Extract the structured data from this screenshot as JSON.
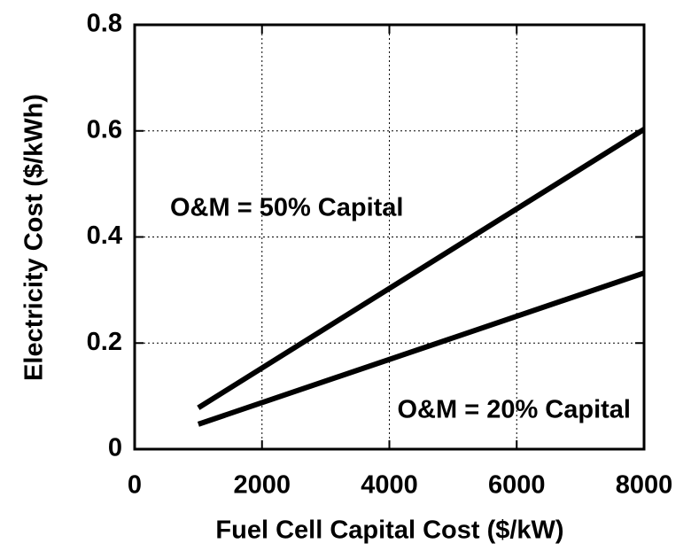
{
  "chart_data": {
    "type": "line",
    "x_label": "Fuel Cell Capital Cost ($/kW)",
    "y_label": "Electricity Cost ($/kWh)",
    "x": [
      1000,
      8000
    ],
    "series": [
      {
        "name": "O&M = 50% Capital",
        "color": "#000000",
        "values": [
          0.078,
          0.603
        ]
      },
      {
        "name": "O&M = 20% Capital",
        "color": "#000000",
        "values": [
          0.047,
          0.332
        ]
      }
    ],
    "xlim": [
      0,
      8000
    ],
    "xticks": [
      0,
      2000,
      4000,
      6000,
      8000
    ],
    "ylim": [
      0,
      0.8
    ],
    "yticks": [
      {
        "value": 0,
        "label": "0"
      },
      0.2,
      0.4,
      0.6,
      0.8
    ],
    "grid": true
  }
}
